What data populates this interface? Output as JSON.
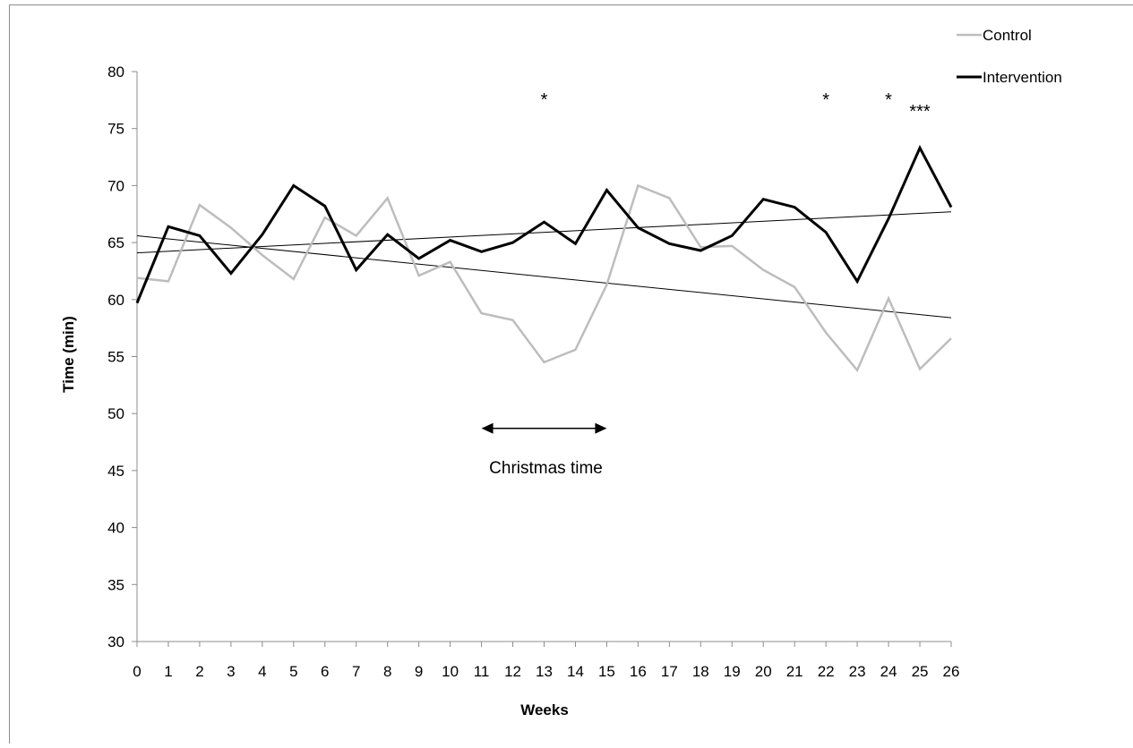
{
  "chart_data": {
    "type": "line",
    "title": "",
    "xlabel": "Weeks",
    "ylabel": "Time (min)",
    "xlim": [
      0,
      26
    ],
    "ylim": [
      30,
      80
    ],
    "yticks": [
      30,
      35,
      40,
      45,
      50,
      55,
      60,
      65,
      70,
      75,
      80
    ],
    "x": [
      0,
      1,
      2,
      3,
      4,
      5,
      6,
      7,
      8,
      9,
      10,
      11,
      12,
      13,
      14,
      15,
      16,
      17,
      18,
      19,
      20,
      21,
      22,
      23,
      24,
      25,
      26
    ],
    "xtick_labels": [
      "0",
      "1",
      "2",
      "3",
      "4",
      "5",
      "6",
      "7",
      "8",
      "9",
      "10",
      "11",
      "12",
      "13",
      "14",
      "15",
      "16",
      "17",
      "18",
      "19",
      "20",
      "21",
      "22",
      "23",
      "24",
      "25",
      "26"
    ],
    "grid": false,
    "legend_position": "top-right",
    "series": [
      {
        "name": "Control",
        "color": "#bdbdbd",
        "values": [
          61.9,
          61.6,
          68.3,
          66.3,
          63.9,
          61.8,
          67.2,
          65.6,
          68.9,
          62.1,
          63.3,
          58.8,
          58.2,
          54.5,
          55.6,
          61.3,
          70.0,
          68.9,
          64.6,
          64.7,
          62.6,
          61.1,
          57.1,
          53.8,
          60.1,
          53.9,
          56.6
        ]
      },
      {
        "name": "Intervention",
        "color": "#000000",
        "values": [
          59.7,
          66.4,
          65.6,
          62.3,
          65.7,
          70.0,
          68.2,
          62.6,
          65.7,
          63.6,
          65.2,
          64.2,
          65.0,
          66.8,
          64.9,
          69.6,
          66.3,
          64.9,
          64.3,
          65.6,
          68.8,
          68.1,
          65.9,
          61.6,
          67.1,
          73.3,
          68.1
        ]
      }
    ],
    "trend_lines": [
      {
        "series": "Control",
        "start": [
          0,
          65.6
        ],
        "end": [
          26,
          58.4
        ]
      },
      {
        "series": "Intervention",
        "start": [
          0,
          64.1
        ],
        "end": [
          26,
          67.7
        ]
      }
    ],
    "annotations": [
      {
        "text": "*",
        "x": 13,
        "y": 77
      },
      {
        "text": "*",
        "x": 22,
        "y": 77
      },
      {
        "text": "*",
        "x": 24,
        "y": 77
      },
      {
        "text": "***",
        "x": 25,
        "y": 76
      }
    ],
    "range_note": {
      "text": "Christmas time",
      "x_from": 11,
      "x_to": 15,
      "y": 48.7
    }
  }
}
